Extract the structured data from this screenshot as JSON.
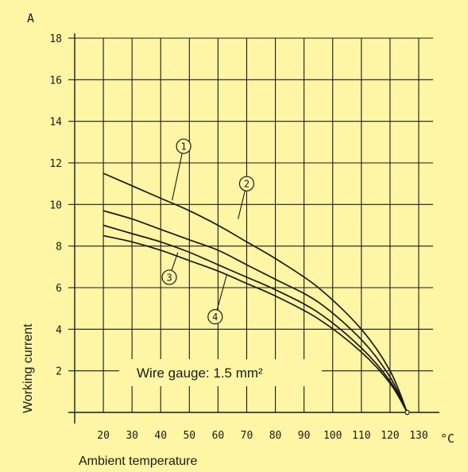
{
  "chart_data": {
    "type": "line",
    "y_unit": "A",
    "x_unit": "°C",
    "ylabel": "Working current",
    "xlabel": "Ambient temperature",
    "annotation": "Wire gauge: 1.5 mm²",
    "xlim": [
      10,
      135
    ],
    "ylim": [
      0,
      18
    ],
    "x_ticks": [
      20,
      30,
      40,
      50,
      60,
      70,
      80,
      90,
      100,
      110,
      120,
      130
    ],
    "y_ticks": [
      2,
      4,
      6,
      8,
      10,
      12,
      14,
      16,
      18
    ],
    "grid": true,
    "series": [
      {
        "marker": "1",
        "x": [
          20,
          30,
          40,
          50,
          60,
          70,
          80,
          95,
          110,
          120,
          126
        ],
        "y": [
          11.5,
          10.9,
          10.3,
          9.7,
          9.0,
          8.2,
          7.4,
          6.0,
          4.0,
          2.0,
          0.0
        ]
      },
      {
        "marker": "2",
        "x": [
          20,
          30,
          40,
          50,
          60,
          70,
          80,
          95,
          110,
          120,
          126
        ],
        "y": [
          9.7,
          9.3,
          8.8,
          8.3,
          7.8,
          7.1,
          6.4,
          5.3,
          3.5,
          1.7,
          0.0
        ]
      },
      {
        "marker": "3",
        "x": [
          20,
          30,
          40,
          50,
          60,
          70,
          80,
          95,
          110,
          120,
          126
        ],
        "y": [
          9.0,
          8.6,
          8.2,
          7.7,
          7.1,
          6.5,
          5.9,
          4.8,
          3.1,
          1.5,
          0.0
        ]
      },
      {
        "marker": "4",
        "x": [
          20,
          30,
          40,
          50,
          60,
          70,
          80,
          95,
          110,
          120,
          126
        ],
        "y": [
          8.5,
          8.2,
          7.8,
          7.3,
          6.8,
          6.2,
          5.6,
          4.5,
          2.9,
          1.4,
          0.0
        ]
      }
    ],
    "callouts": [
      {
        "marker": "1",
        "at": [
          44,
          10.2
        ],
        "label_at": [
          48,
          12.8
        ]
      },
      {
        "marker": "2",
        "at": [
          67,
          9.3
        ],
        "label_at": [
          70,
          11.0
        ]
      },
      {
        "marker": "3",
        "at": [
          46,
          7.7
        ],
        "label_at": [
          43,
          6.5
        ]
      },
      {
        "marker": "4",
        "at": [
          63,
          6.6
        ],
        "label_at": [
          59,
          4.6
        ]
      }
    ]
  }
}
